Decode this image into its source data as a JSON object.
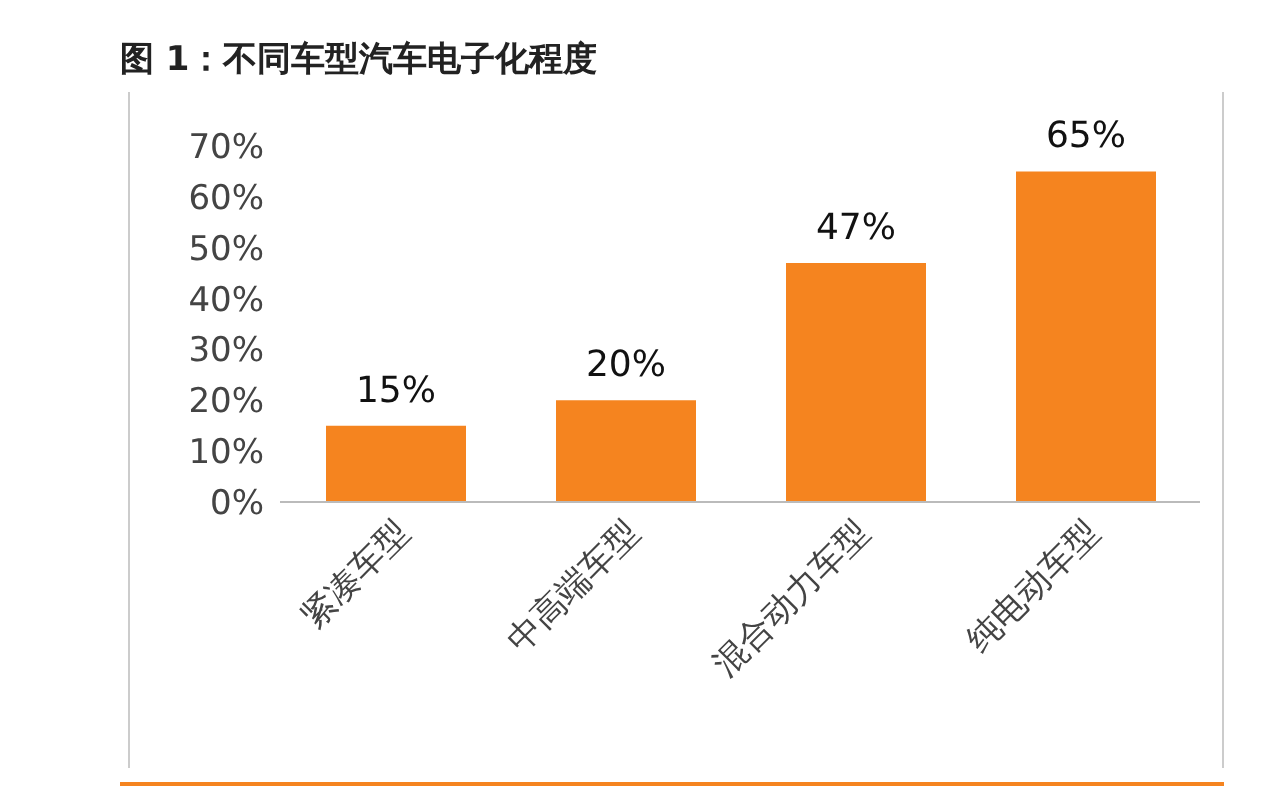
{
  "chart_data": {
    "type": "bar",
    "title": "图 1：不同车型汽车电子化程度",
    "categories": [
      "紧凑车型",
      "中高端车型",
      "混合动力车型",
      "纯电动车型"
    ],
    "values": [
      15,
      20,
      47,
      65
    ],
    "color": "#f5841f",
    "ylim": [
      0,
      70
    ],
    "yticks": [
      {
        "value": 0,
        "label": "0%"
      },
      {
        "value": 10,
        "label": "10%"
      },
      {
        "value": 20,
        "label": "20%"
      },
      {
        "value": 30,
        "label": "30%"
      },
      {
        "value": 40,
        "label": "40%"
      },
      {
        "value": 50,
        "label": "50%"
      },
      {
        "value": 60,
        "label": "60%"
      },
      {
        "value": 70,
        "label": "70%"
      }
    ],
    "value_labels": [
      "15%",
      "20%",
      "47%",
      "65%"
    ],
    "grid": false,
    "legend": false
  }
}
